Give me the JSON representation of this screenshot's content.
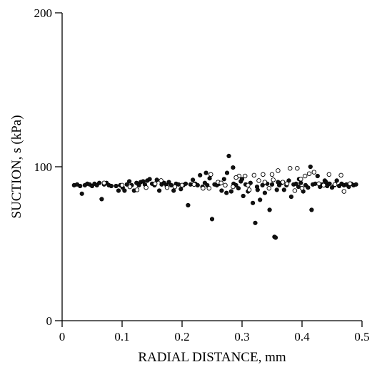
{
  "chart_data": {
    "type": "scatter",
    "xlabel": "RADIAL DISTANCE, mm",
    "ylabel": "SUCTION, s (kPa)",
    "xlim": [
      0,
      0.5
    ],
    "ylim": [
      0,
      200
    ],
    "x_ticks": [
      0,
      0.1,
      0.2,
      0.3,
      0.4,
      0.5
    ],
    "x_tick_labels": [
      "0",
      "0.1",
      "0.2",
      "0.3",
      "0.4",
      "0.5"
    ],
    "y_ticks": [
      0,
      100,
      200
    ],
    "y_tick_labels": [
      "0",
      "100",
      "200"
    ],
    "grid": false,
    "legend": "none",
    "colors": {
      "filled_marker": "#111111",
      "open_marker_fill": "#ffffff",
      "marker_edge": "#000000",
      "axis": "#000000"
    },
    "series": [
      {
        "marker": "filled-circle",
        "points": [
          [
            0.02,
            88
          ],
          [
            0.025,
            88.5
          ],
          [
            0.03,
            87.5
          ],
          [
            0.033,
            82.5
          ],
          [
            0.038,
            88
          ],
          [
            0.042,
            89
          ],
          [
            0.046,
            88.5
          ],
          [
            0.05,
            87.5
          ],
          [
            0.054,
            89
          ],
          [
            0.058,
            88
          ],
          [
            0.062,
            89.5
          ],
          [
            0.066,
            79
          ],
          [
            0.07,
            88.5
          ],
          [
            0.074,
            89.5
          ],
          [
            0.078,
            88
          ],
          [
            0.082,
            87.5
          ],
          [
            0.09,
            87.5
          ],
          [
            0.094,
            84.5
          ],
          [
            0.097,
            88
          ],
          [
            0.101,
            86.5
          ],
          [
            0.104,
            84.5
          ],
          [
            0.108,
            88.5
          ],
          [
            0.112,
            90.5
          ],
          [
            0.116,
            88
          ],
          [
            0.12,
            84.5
          ],
          [
            0.124,
            89.5
          ],
          [
            0.128,
            88
          ],
          [
            0.131,
            90
          ],
          [
            0.135,
            90.5
          ],
          [
            0.138,
            88.5
          ],
          [
            0.142,
            91
          ],
          [
            0.146,
            92
          ],
          [
            0.15,
            89
          ],
          [
            0.154,
            88
          ],
          [
            0.158,
            91.5
          ],
          [
            0.162,
            84.5
          ],
          [
            0.166,
            88.5
          ],
          [
            0.17,
            89.5
          ],
          [
            0.174,
            88
          ],
          [
            0.178,
            90
          ],
          [
            0.182,
            88
          ],
          [
            0.186,
            84.5
          ],
          [
            0.19,
            89
          ],
          [
            0.194,
            88.5
          ],
          [
            0.198,
            85.5
          ],
          [
            0.202,
            88
          ],
          [
            0.206,
            89
          ],
          [
            0.21,
            75
          ],
          [
            0.214,
            88.5
          ],
          [
            0.218,
            91.5
          ],
          [
            0.222,
            89
          ],
          [
            0.226,
            88
          ],
          [
            0.23,
            94.5
          ],
          [
            0.234,
            87
          ],
          [
            0.238,
            89.5
          ],
          [
            0.242,
            88
          ],
          [
            0.246,
            92.5
          ],
          [
            0.25,
            66
          ],
          [
            0.254,
            88.5
          ],
          [
            0.258,
            88
          ],
          [
            0.262,
            89
          ],
          [
            0.266,
            84.5
          ],
          [
            0.27,
            92
          ],
          [
            0.274,
            83
          ],
          [
            0.278,
            107
          ],
          [
            0.282,
            84
          ],
          [
            0.286,
            89
          ],
          [
            0.29,
            88
          ],
          [
            0.294,
            86
          ],
          [
            0.298,
            90.5
          ],
          [
            0.302,
            81
          ],
          [
            0.306,
            88.5
          ],
          [
            0.31,
            84
          ],
          [
            0.314,
            89.5
          ],
          [
            0.318,
            76.5
          ],
          [
            0.322,
            63.5
          ],
          [
            0.326,
            85
          ],
          [
            0.33,
            78.5
          ],
          [
            0.334,
            88
          ],
          [
            0.338,
            83
          ],
          [
            0.342,
            89
          ],
          [
            0.346,
            72
          ],
          [
            0.35,
            88.5
          ],
          [
            0.354,
            54.5
          ],
          [
            0.356,
            54
          ],
          [
            0.358,
            85
          ],
          [
            0.362,
            88
          ],
          [
            0.366,
            89.5
          ],
          [
            0.37,
            85
          ],
          [
            0.374,
            88
          ],
          [
            0.378,
            91
          ],
          [
            0.382,
            80.5
          ],
          [
            0.386,
            88.5
          ],
          [
            0.39,
            89
          ],
          [
            0.394,
            87
          ],
          [
            0.398,
            89.5
          ],
          [
            0.402,
            84
          ],
          [
            0.406,
            88
          ],
          [
            0.41,
            86.5
          ],
          [
            0.414,
            100
          ],
          [
            0.416,
            72
          ],
          [
            0.418,
            88.5
          ],
          [
            0.422,
            89
          ],
          [
            0.426,
            94
          ],
          [
            0.43,
            87
          ],
          [
            0.434,
            88.5
          ],
          [
            0.438,
            91
          ],
          [
            0.442,
            87.5
          ],
          [
            0.446,
            89
          ],
          [
            0.45,
            86.5
          ],
          [
            0.454,
            88
          ],
          [
            0.458,
            91
          ],
          [
            0.462,
            87.5
          ],
          [
            0.466,
            89
          ],
          [
            0.47,
            88
          ],
          [
            0.474,
            88.5
          ],
          [
            0.478,
            87
          ],
          [
            0.482,
            89
          ],
          [
            0.486,
            88
          ],
          [
            0.49,
            88.5
          ],
          [
            0.275,
            96
          ],
          [
            0.3,
            92
          ],
          [
            0.325,
            87
          ],
          [
            0.36,
            90
          ],
          [
            0.395,
            92
          ],
          [
            0.44,
            90
          ],
          [
            0.24,
            96
          ],
          [
            0.285,
            99.5
          ]
        ]
      },
      {
        "marker": "open-circle",
        "points": [
          [
            0.07,
            89.5
          ],
          [
            0.1,
            88
          ],
          [
            0.113,
            87
          ],
          [
            0.125,
            85
          ],
          [
            0.14,
            86.5
          ],
          [
            0.155,
            89
          ],
          [
            0.165,
            91
          ],
          [
            0.175,
            86.5
          ],
          [
            0.188,
            87
          ],
          [
            0.2,
            88
          ],
          [
            0.22,
            88.5
          ],
          [
            0.235,
            86
          ],
          [
            0.248,
            95
          ],
          [
            0.26,
            90
          ],
          [
            0.272,
            88
          ],
          [
            0.285,
            87
          ],
          [
            0.295,
            94
          ],
          [
            0.305,
            94
          ],
          [
            0.312,
            85
          ],
          [
            0.32,
            94.5
          ],
          [
            0.328,
            91
          ],
          [
            0.335,
            95
          ],
          [
            0.345,
            86
          ],
          [
            0.352,
            91.5
          ],
          [
            0.36,
            97.5
          ],
          [
            0.368,
            90
          ],
          [
            0.375,
            89
          ],
          [
            0.38,
            99
          ],
          [
            0.388,
            84.5
          ],
          [
            0.392,
            99
          ],
          [
            0.398,
            92
          ],
          [
            0.405,
            94
          ],
          [
            0.412,
            95.5
          ],
          [
            0.42,
            96.5
          ],
          [
            0.428,
            89
          ],
          [
            0.436,
            88
          ],
          [
            0.445,
            95
          ],
          [
            0.455,
            88.5
          ],
          [
            0.465,
            94.5
          ],
          [
            0.47,
            84
          ],
          [
            0.48,
            89
          ],
          [
            0.35,
            95
          ],
          [
            0.31,
            88
          ],
          [
            0.338,
            90
          ],
          [
            0.245,
            86
          ],
          [
            0.265,
            89.5
          ],
          [
            0.29,
            93
          ],
          [
            0.4,
            86
          ]
        ]
      }
    ]
  }
}
